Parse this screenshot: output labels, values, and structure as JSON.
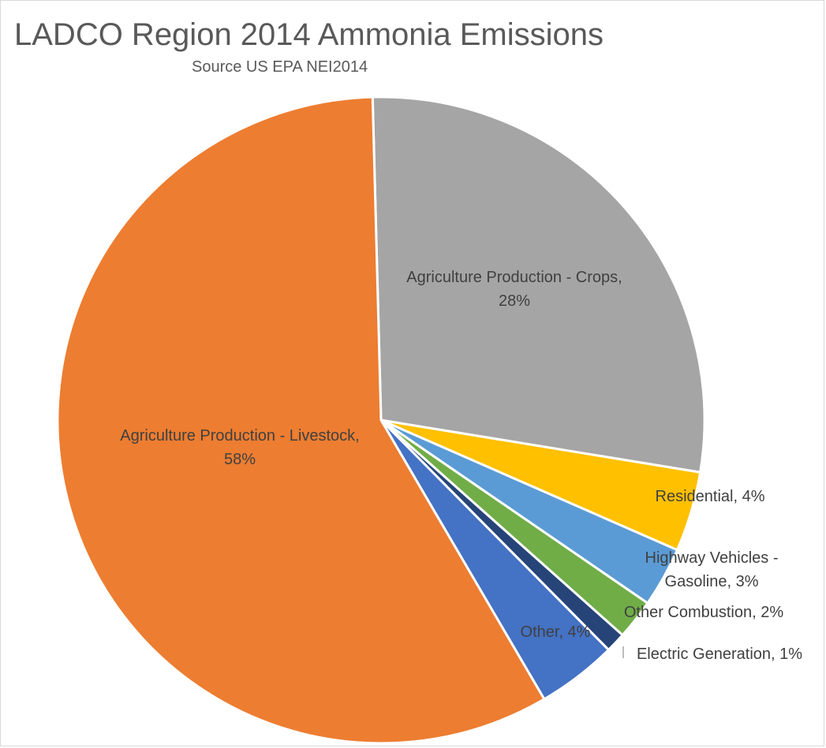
{
  "chart_data": {
    "type": "pie",
    "title": "LADCO Region 2014 Ammonia Emissions",
    "subtitle": "Source US EPA NEI2014",
    "slices": [
      {
        "label": "Agriculture Production - Crops",
        "value": 28,
        "color": "#a5a5a5",
        "label_lines": [
          "Agriculture Production - Crops,",
          "28%"
        ]
      },
      {
        "label": "Residential",
        "value": 4,
        "color": "#ffc000",
        "label_lines": [
          "Residential, 4%"
        ]
      },
      {
        "label": "Highway Vehicles - Gasoline",
        "value": 3,
        "color": "#5b9bd5",
        "label_lines": [
          "Highway Vehicles -",
          "Gasoline, 3%"
        ]
      },
      {
        "label": "Other Combustion",
        "value": 2,
        "color": "#70ad47",
        "label_lines": [
          "Other Combustion, 2%"
        ]
      },
      {
        "label": "Electric Generation",
        "value": 1,
        "color": "#264478",
        "label_lines": [
          "Electric Generation, 1%"
        ]
      },
      {
        "label": "Other",
        "value": 4,
        "color": "#4472c4",
        "label_lines": [
          "Other, 4%"
        ]
      },
      {
        "label": "Agriculture Production - Livestock",
        "value": 58,
        "color": "#ed7d31",
        "label_lines": [
          "Agriculture Production - Livestock,",
          "58%"
        ]
      }
    ]
  }
}
